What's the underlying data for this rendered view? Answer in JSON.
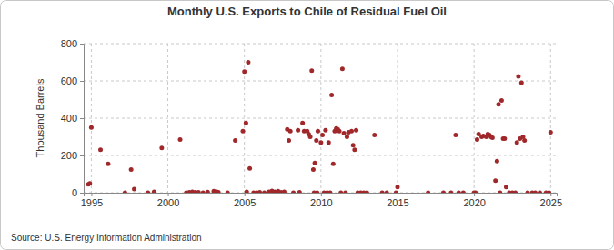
{
  "chart_data": {
    "type": "scatter",
    "title": "Monthly U.S. Exports to Chile of Residual Fuel Oil",
    "y_label": "Thousand Barrels",
    "source": "Source: U.S. Energy Information Administration",
    "color": "#a0282a",
    "marker": "circle",
    "grid": true,
    "xlim": [
      1994.5,
      2025.4
    ],
    "xticks": [
      1995,
      2000,
      2005,
      2010,
      2015,
      2020,
      2025
    ],
    "ylim": [
      0,
      800
    ],
    "yticks": [
      0,
      200,
      400,
      600,
      800
    ],
    "x": [
      1994.8,
      1994.9,
      1995.0,
      1995.6,
      1996.1,
      1997.2,
      1997.6,
      1997.8,
      1998.7,
      1999.1,
      1999.6,
      2000.8,
      2001.2,
      2001.4,
      2001.6,
      2001.8,
      2002.0,
      2002.3,
      2002.6,
      2003.0,
      2003.2,
      2003.3,
      2003.9,
      2004.4,
      2004.9,
      2005.0,
      2005.1,
      2005.15,
      2005.25,
      2005.35,
      2005.6,
      2005.8,
      2006.0,
      2006.3,
      2006.6,
      2006.8,
      2007.0,
      2007.2,
      2007.4,
      2007.6,
      2007.8,
      2007.9,
      2008.0,
      2008.2,
      2008.5,
      2008.6,
      2008.8,
      2008.9,
      2009.1,
      2009.2,
      2009.3,
      2009.4,
      2009.5,
      2009.55,
      2009.6,
      2009.7,
      2009.75,
      2009.8,
      2010.0,
      2010.1,
      2010.2,
      2010.3,
      2010.4,
      2010.5,
      2010.6,
      2010.7,
      2010.8,
      2010.9,
      2011.0,
      2011.1,
      2011.2,
      2011.3,
      2011.4,
      2011.5,
      2011.6,
      2011.7,
      2011.8,
      2012.0,
      2012.1,
      2012.2,
      2012.3,
      2012.4,
      2012.6,
      2012.8,
      2013.0,
      2013.5,
      2014.0,
      2014.3,
      2014.9,
      2015.0,
      2017.0,
      2018.0,
      2018.5,
      2018.8,
      2019.0,
      2019.3,
      2020.0,
      2020.1,
      2020.2,
      2020.3,
      2020.5,
      2020.6,
      2020.8,
      2020.9,
      2021.0,
      2021.1,
      2021.2,
      2021.4,
      2021.5,
      2021.6,
      2021.7,
      2021.8,
      2021.9,
      2022.0,
      2022.1,
      2022.3,
      2022.5,
      2022.7,
      2022.8,
      2022.9,
      2023.0,
      2023.1,
      2023.2,
      2023.3,
      2023.5,
      2023.8,
      2024.0,
      2024.3,
      2024.7,
      2024.9,
      2025.0
    ],
    "values": [
      45,
      50,
      350,
      230,
      155,
      0,
      125,
      20,
      0,
      5,
      240,
      285,
      0,
      3,
      5,
      3,
      2,
      0,
      4,
      8,
      5,
      2,
      0,
      280,
      330,
      650,
      375,
      5,
      700,
      130,
      0,
      0,
      2,
      0,
      5,
      10,
      5,
      8,
      3,
      5,
      340,
      280,
      330,
      0,
      335,
      3,
      375,
      330,
      330,
      315,
      300,
      655,
      125,
      0,
      160,
      280,
      0,
      330,
      270,
      310,
      0,
      335,
      0,
      270,
      0,
      525,
      155,
      330,
      345,
      340,
      330,
      0,
      665,
      320,
      0,
      300,
      325,
      330,
      255,
      230,
      335,
      0,
      0,
      0,
      0,
      310,
      0,
      0,
      0,
      30,
      0,
      0,
      0,
      310,
      0,
      0,
      0,
      0,
      285,
      315,
      300,
      305,
      300,
      315,
      310,
      300,
      295,
      65,
      170,
      475,
      0,
      495,
      290,
      290,
      30,
      0,
      0,
      0,
      270,
      625,
      290,
      590,
      300,
      280,
      0,
      0,
      0,
      0,
      0,
      0,
      325
    ]
  }
}
